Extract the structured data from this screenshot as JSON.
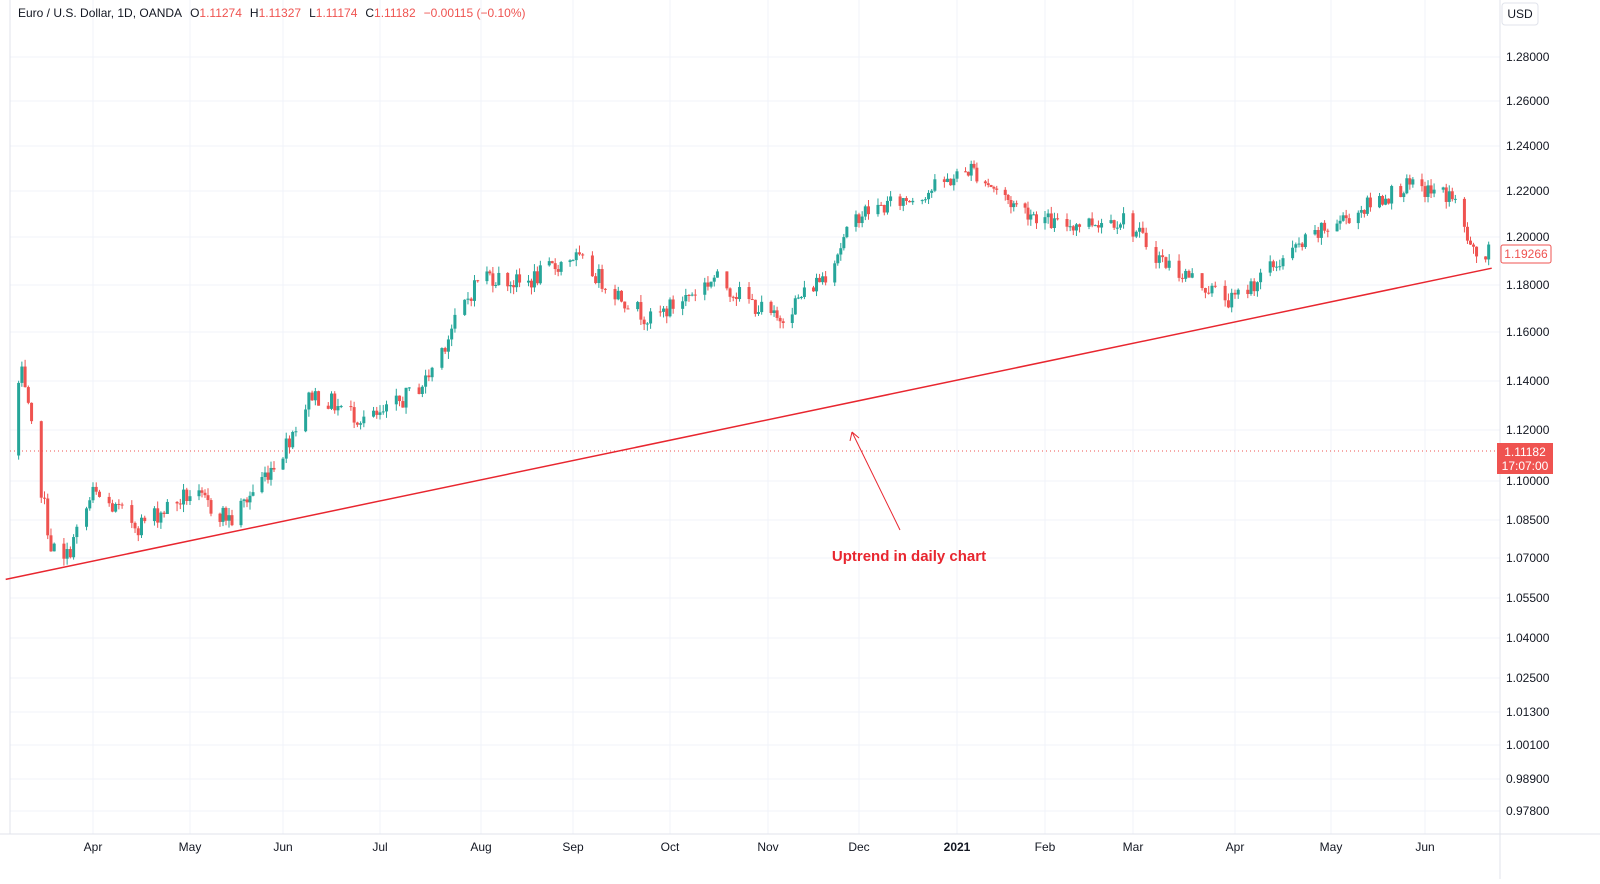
{
  "header": {
    "symbol": "Euro / U.S. Dollar, 1D, OANDA",
    "open_label": "O",
    "open": "1.11274",
    "high_label": "H",
    "high": "1.11327",
    "low_label": "L",
    "low": "1.11174",
    "close_label": "C",
    "close": "1.11182",
    "change": "−0.00115 (−0.10%)",
    "currency": "USD"
  },
  "colors": {
    "up": "#26a69a",
    "down": "#ef5350",
    "trend": "#e8262f",
    "grid": "#f0f3fa",
    "axis_line": "#e0e3eb",
    "text": "#131722"
  },
  "chart_data": {
    "type": "candlestick",
    "title": "Euro / U.S. Dollar, 1D, OANDA",
    "price_axis_labels": [
      "1.28000",
      "1.26000",
      "1.24000",
      "1.22000",
      "1.20000",
      "1.18000",
      "1.16000",
      "1.14000",
      "1.12000",
      "1.10000",
      "1.08500",
      "1.07000",
      "1.05500",
      "1.04000",
      "1.02500",
      "1.01300",
      "1.00100",
      "0.98900",
      "0.97800"
    ],
    "time_axis_labels": [
      "Apr",
      "May",
      "Jun",
      "Jul",
      "Aug",
      "Sep",
      "Oct",
      "Nov",
      "Dec",
      "2021",
      "Feb",
      "Mar",
      "Apr",
      "May",
      "Jun"
    ],
    "last_price": "1.11182",
    "countdown": "17:07:00",
    "trend_end_price": "1.19266",
    "x": [
      "2020-03-01",
      "2020-03-10",
      "2020-03-19",
      "2020-03-23",
      "2020-04-01",
      "2020-04-15",
      "2020-05-01",
      "2020-05-15",
      "2020-06-01",
      "2020-06-10",
      "2020-06-25",
      "2020-07-01",
      "2020-07-15",
      "2020-08-01",
      "2020-08-15",
      "2020-09-01",
      "2020-09-25",
      "2020-10-15",
      "2020-11-04",
      "2020-11-20",
      "2020-12-01",
      "2020-12-20",
      "2021-01-06",
      "2021-01-20",
      "2021-02-05",
      "2021-02-26",
      "2021-03-10",
      "2021-03-31",
      "2021-04-15",
      "2021-05-01",
      "2021-05-25",
      "2021-06-10",
      "2021-06-17",
      "2021-06-22"
    ],
    "y": [
      1.11,
      1.142,
      1.075,
      1.068,
      1.095,
      1.083,
      1.095,
      1.085,
      1.112,
      1.135,
      1.125,
      1.125,
      1.14,
      1.185,
      1.18,
      1.192,
      1.165,
      1.183,
      1.165,
      1.185,
      1.21,
      1.218,
      1.23,
      1.215,
      1.205,
      1.208,
      1.19,
      1.173,
      1.19,
      1.205,
      1.222,
      1.218,
      1.192,
      1.193
    ],
    "annotation": "Uptrend in daily chart",
    "trendline": {
      "from": {
        "x": "2020-03-05",
        "y": 1.062
      },
      "to": {
        "x": "2021-06-23",
        "y": 1.187
      }
    }
  }
}
